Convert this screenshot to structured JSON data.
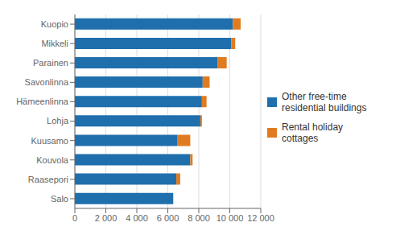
{
  "chart_data": {
    "type": "bar",
    "orientation": "horizontal",
    "stacked": true,
    "categories": [
      "Salo",
      "Raasepori",
      "Kouvola",
      "Kuusamo",
      "Lohja",
      "Hämeenlinna",
      "Savonlinna",
      "Parainen",
      "Mikkeli",
      "Kuopio"
    ],
    "series": [
      {
        "name": "Other free-time\nresidential buildings",
        "color": "#1f6fad",
        "values": [
          6350,
          6550,
          7450,
          6600,
          8100,
          8200,
          8250,
          9200,
          10100,
          10200
        ]
      },
      {
        "name": "Rental holiday cottages",
        "color": "#e07b20",
        "values": [
          0,
          250,
          150,
          850,
          100,
          300,
          450,
          600,
          250,
          500
        ]
      }
    ],
    "xlim": [
      0,
      12000
    ],
    "xticks": [
      0,
      {
        "value": 2000,
        "label": "2 000"
      },
      {
        "value": 4000,
        "label": "4 000"
      },
      {
        "value": 6000,
        "label": "6 000"
      },
      {
        "value": 8000,
        "label": "8 000"
      },
      {
        "value": 10000,
        "label": "10 000"
      },
      {
        "value": 12000,
        "label": "12 000"
      }
    ],
    "grid": true,
    "legend": "right"
  }
}
